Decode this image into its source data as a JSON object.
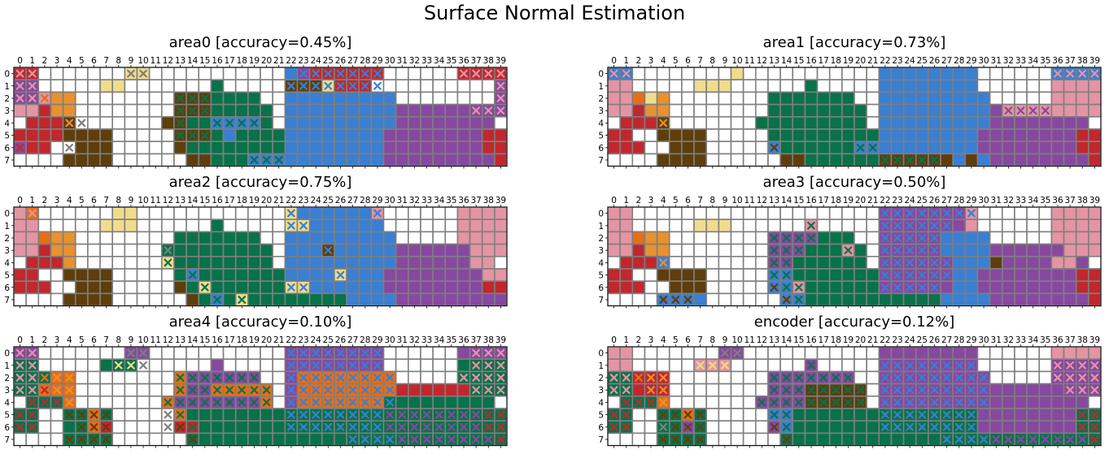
{
  "figure": {
    "title": "Surface Normal Estimation"
  },
  "colors": {
    "0": "#ffffff",
    "1": "#c1272d",
    "2": "#e8912f",
    "3": "#f0dc8c",
    "4": "#5e3e0c",
    "5": "#08724a",
    "6": "#3a7fd1",
    "7": "#8748a0",
    "8": "#e494a3",
    "9": "#e86e16",
    "grid": "#7f7f7f"
  },
  "chart_data": [
    {
      "type": "heatmap",
      "title": "area0 [accuracy=0.45%]",
      "x_ticks": [
        "0",
        "1",
        "2",
        "3",
        "4",
        "5",
        "6",
        "7",
        "8",
        "9",
        "10",
        "11",
        "12",
        "13",
        "14",
        "15",
        "16",
        "17",
        "18",
        "19",
        "20",
        "21",
        "22",
        "23",
        "24",
        "25",
        "26",
        "27",
        "28",
        "29",
        "30",
        "31",
        "32",
        "33",
        "34",
        "35",
        "36",
        "37",
        "38",
        "39"
      ],
      "y_ticks": [
        "0",
        "1",
        "2",
        "3",
        "4",
        "5",
        "6",
        "7"
      ],
      "cells": [
        "8000000000000000000000666666660000000888",
        "8800000330000000500000666666660000000888",
        "8820000000000050000000666666660000000888",
        "8111200000000055555550666666677777778888",
        "8111110000000555555550666666677777777700",
        "1711444400000555555550666666677777777700",
        "1110044400000455555555666666677777777700",
        "0000003300000044555555555555554777777771"
      ],
      "crosses": [
        "1100000000110000000000266660000000000000",
        "0000000000000000000000266000000000000000",
        "0000000000000000000000000000000000000000",
        "0010000000000000000000000000000000000000",
        "0000000000000000000000000000000000000000",
        "0000000000000000000000000000000000000000",
        "0000000000000000000000000000000000000000",
        "0000000000000000000000000000000000000000"
      ],
      "cross_colors": [
        "11000000033000000000003713111100000001111",
        "77000000000000000000004443111000000000007",
        "77820000000000000000000000000000000000000",
        "00322000000000000000000000000000000000000",
        "00000000000000000000000000000000000000000",
        "00000000000000000000000000000000000000000",
        "00000000000000000000000000000000000000000",
        "00000000000000000000000000000000000000000"
      ]
    },
    {
      "type": "heatmap",
      "title": "area1 [accuracy=0.73%]",
      "x_ticks": [
        "0",
        "1",
        "2",
        "3",
        "4",
        "5",
        "6",
        "7",
        "8",
        "9",
        "10",
        "11",
        "12",
        "13",
        "14",
        "15",
        "16",
        "17",
        "18",
        "19",
        "20",
        "21",
        "22",
        "23",
        "24",
        "25",
        "26",
        "27",
        "28",
        "29",
        "30",
        "31",
        "32",
        "33",
        "34",
        "35",
        "36",
        "37",
        "38",
        "39"
      ],
      "y_ticks": [
        "0",
        "1",
        "2",
        "3",
        "4",
        "5",
        "6",
        "7"
      ],
      "cells": [
        "6600000003300000000000666666660000006666",
        "8800000333000000500000666666660000008888",
        "8800000000000000000000666666660000008888",
        "8800000000000000000000666666660000008888",
        "0000000000000000000000666666660000008888",
        "0000000000000000000000666666660000000000",
        "0000000000000000000000666666660000000000",
        "0000000000000000000000000000000000000000"
      ],
      "crosses": [],
      "cross_colors": []
    },
    {
      "type": "heatmap",
      "title": "area2 [accuracy=0.75%]",
      "x_ticks": [
        "0",
        "1",
        "2",
        "3",
        "4",
        "5",
        "6",
        "7",
        "8",
        "9",
        "10",
        "11",
        "12",
        "13",
        "14",
        "15",
        "16",
        "17",
        "18",
        "19",
        "20",
        "21",
        "22",
        "23",
        "24",
        "25",
        "26",
        "27",
        "28",
        "29",
        "30",
        "31",
        "32",
        "33",
        "34",
        "35",
        "36",
        "37",
        "38",
        "39"
      ],
      "y_ticks": [
        "0",
        "1",
        "2",
        "3",
        "4",
        "5",
        "6",
        "7"
      ],
      "cells": [],
      "crosses": [],
      "cross_colors": []
    },
    {
      "type": "heatmap",
      "title": "area3 [accuracy=0.50%]",
      "x_ticks": [
        "0",
        "1",
        "2",
        "3",
        "4",
        "5",
        "6",
        "7",
        "8",
        "9",
        "10",
        "11",
        "12",
        "13",
        "14",
        "15",
        "16",
        "17",
        "18",
        "19",
        "20",
        "21",
        "22",
        "23",
        "24",
        "25",
        "26",
        "27",
        "28",
        "29",
        "30",
        "31",
        "32",
        "33",
        "34",
        "35",
        "36",
        "37",
        "38",
        "39"
      ],
      "y_ticks": [
        "0",
        "1",
        "2",
        "3",
        "4",
        "5",
        "6",
        "7"
      ],
      "cells": [],
      "crosses": [],
      "cross_colors": []
    },
    {
      "type": "heatmap",
      "title": "area4 [accuracy=0.10%]",
      "x_ticks": [
        "0",
        "1",
        "2",
        "3",
        "4",
        "5",
        "6",
        "7",
        "8",
        "9",
        "10",
        "11",
        "12",
        "13",
        "14",
        "15",
        "16",
        "17",
        "18",
        "19",
        "20",
        "21",
        "22",
        "23",
        "24",
        "25",
        "26",
        "27",
        "28",
        "29",
        "30",
        "31",
        "32",
        "33",
        "34",
        "35",
        "36",
        "37",
        "38",
        "39"
      ],
      "y_ticks": [
        "0",
        "1",
        "2",
        "3",
        "4",
        "5",
        "6",
        "7"
      ],
      "cells": [],
      "crosses": [],
      "cross_colors": []
    },
    {
      "type": "heatmap",
      "title": "encoder [accuracy=0.12%]",
      "x_ticks": [
        "0",
        "1",
        "2",
        "3",
        "4",
        "5",
        "6",
        "7",
        "8",
        "9",
        "10",
        "11",
        "12",
        "13",
        "14",
        "15",
        "16",
        "17",
        "18",
        "19",
        "20",
        "21",
        "22",
        "23",
        "24",
        "25",
        "26",
        "27",
        "28",
        "29",
        "30",
        "31",
        "32",
        "33",
        "34",
        "35",
        "36",
        "37",
        "38",
        "39"
      ],
      "y_ticks": [
        "0",
        "1",
        "2",
        "3",
        "4",
        "5",
        "6",
        "7"
      ],
      "cells": [],
      "crosses": [],
      "cross_colors": []
    }
  ],
  "ground_truth": [
    "8800000000000000000000666666660000008888",
    "8800000333000000500000666666660000008888",
    "8892200000000555555500666666666000008888",
    "8812200000000555555550666666666777777888",
    "0111200000005555555550666666666777777770",
    "1100444400000555555555666666667777777711",
    "1110044400000455555555666666667777777711",
    "0000444400000045555555555556666777777771"
  ],
  "predictions": [
    {
      "cells": [
        "1100000003300000000000671111110000001111",
        "7700000330000000500000444311100000000007",
        "7782200000000444555500666666666000000007",
        "8812200000000444555550666666666777777777",
        "0111400000004455666650666666666777777770",
        "1111444400000444565555666666667777777711",
        "7110044400000455555555666666667777777711",
        "0000444400000044555666666666667777777771"
      ],
      "crosses": [
        "1100000001100000000000111111110000001111",
        "1100000000000000000000111111110000000001",
        "1110000000000111000000000000000000000001",
        "0001100000000111000000111000000000000111",
        "0000110000000111111100000000000000000000",
        "1000000000000111000000111000000000000000",
        "1000110000000000000000111000000000000000",
        "0000000000000000000111000000000111111111"
      ]
    },
    {
      "cells": [
        "6600000000300000000000666666660000006666",
        "8800000333000000500000666666660000008888",
        "8893200000000555555500666666666000008888",
        "8812200000000555555550666666666788888888",
        "0111400000005555555550666666666777777770",
        "1100444400000555555555666666667777777711",
        "1110044400000655555566666666667777777711",
        "0000444400000044555555444444646777777771"
      ],
      "crosses": [
        "1100000000000000000000000000000000001111",
        "0000000000000000000000000000000000000000",
        "0000000000000100000000000000000000000000",
        "0010000000000000000000110000000111110000",
        "0000100000000000000000110000000000000000",
        "0000000000000000000000110000000000000000",
        "0000000000000100000011000000000000000000",
        "0000000000000000111000111110000001000000"
      ]
    },
    {
      "cells": [
        "8900000033000000000000366666680000008888",
        "8800000333000000500000336666660000008888",
        "8892200000000555555500666666666000008888",
        "8812200000005555555550666466666777777888",
        "0111200000003555555550666666666777777880",
        "1100444400000565555555666636667777777788",
        "1110044400000453555555336666667777777711",
        "0000444400000045653555555556666777777777"
      ],
      "crosses": [
        "0100000000000000000000101111110000000000",
        "0000000000000000000000110000000000000000",
        "0010000000000000000000000000000000000000",
        "0000000000001000000000000100000000000000",
        "0000000000001100000000000000000000011000",
        "0000000000000110000000000010000000000100",
        "0000000000000011000000110000000000000000",
        "0000000000000011111111000000000000000000"
      ]
    },
    {
      "cells": [
        "8800000000000000000000777777780000008888",
        "8800000333000000800000777777780000008888",
        "8892200000000777755500777776666000008888",
        "8812200000000777555850777776666777777888",
        "0111600000000775555550777777666477778870",
        "1100444400000665555555777777667777777711",
        "1110044400000668555555777777667777777711",
        "0000666600000066555555555556666777777771"
      ],
      "crosses": [
        "0000000000000000000000111111110000000000",
        "0000000000000000100000111111000000000000",
        "0010000000000111111000111110000000000000",
        "0010000000000111000100111110000000000000",
        "0010100000000110000000111111000000000000",
        "0000000000000111000000111111000000000000",
        "0000000000000111111111111110000000000000",
        "0000111000000011111111000000000000000000"
      ]
    },
    {
      "cells": [
        "7700000007700000000000777777770000007777",
        "5500000555000000700000777777770000005555",
        "5559900000000977777700799999999000005555",
        "5599900000000977999990799999999111111555",
        "0555900000009777777790799999995555555550",
        "5500559500000955555555555555555555555555",
        "5500559100000115555555555555555555555555",
        "0000555500000055555555555555555555555555"
      ],
      "crosses": [
        "1100000001100000000000111111110000000111",
        "1100000011100000000000111111110000000111",
        "1111100000000111111100111111111000001111",
        "1111100000000111111110111111111000000111",
        "0111100000001111111110111111111000000000",
        "1100111100001111111111111111111111111111",
        "1100011100001111111111111111111111111111",
        "0000111100000011111111111111111111111111"
      ]
    },
    {
      "cells": [
        "8800000007700000000000777777770000008888",
        "8800000888000000700000777777770000007777",
        "5511100000000777777700777777777000007777",
        "5511100000000777444440777777777777777777",
        "0555900000007777444440777777777777777770",
        "5500559500000665555555555555557777777755",
        "5500557500000765555555555555557777777755",
        "0000555500000055555555555555555555555555"
      ],
      "crosses": [
        "1100000001100000000000000000000000001111",
        "1100000111000000100000111111110000001111",
        "1111100000000111111100111111111000001111",
        "1111100000000111111110111111111000001111",
        "0111100000001111111110111111111000000000",
        "1100111100000111111111111111111111111111",
        "1100111100000111111111111111111111111111",
        "0000111100000011111111111111111111111111"
      ]
    }
  ]
}
